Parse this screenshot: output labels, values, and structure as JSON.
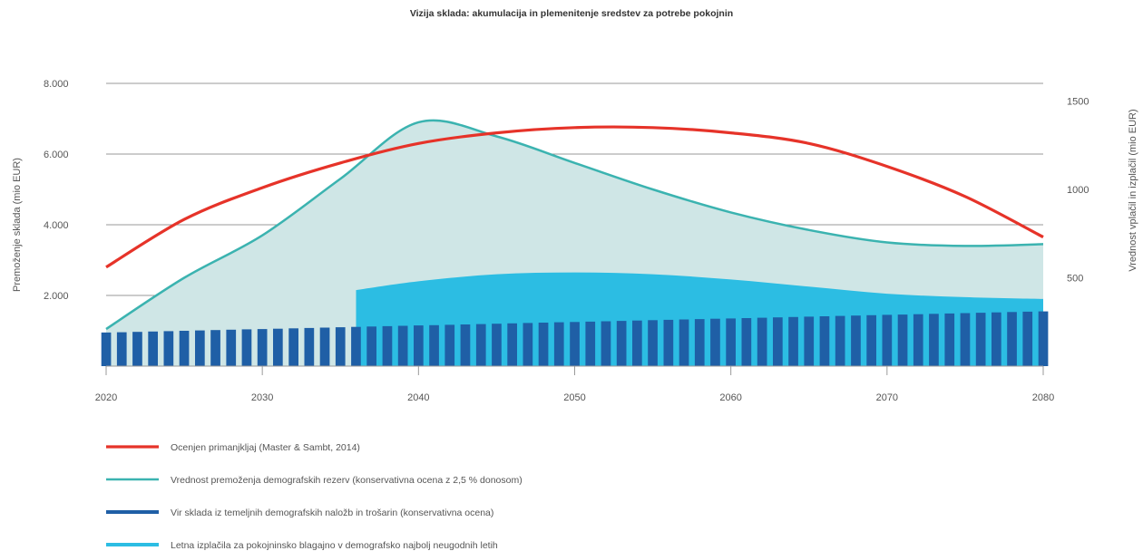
{
  "chart_data": {
    "type": "area",
    "title": "Vizija sklada: akumulacija in plemenitenje sredstev za potrebe pokojnin",
    "ylabel_left": "Premoženje sklada (mio EUR)",
    "ylabel_right": "Vrednost vplačil in izplačil (mio EUR)",
    "x_ticks": [
      "2020",
      "2030",
      "2040",
      "2050",
      "2060",
      "2070",
      "2080"
    ],
    "y_left_ticks": [
      "8.000",
      "6.000",
      "4.000",
      "2.000"
    ],
    "y_right_ticks": [
      "1500",
      "1000",
      "500"
    ],
    "xlim": [
      2020,
      2080
    ],
    "ylim_left": [
      0,
      8000
    ],
    "ylim_right": [
      0,
      1600
    ],
    "grid": true,
    "legend_position": "bottom-left",
    "colors": {
      "deficit": "#e63329",
      "reserves_line": "#3bb3b0",
      "reserves_fill": "#cfe6e6",
      "source": "#1f5fa6",
      "payouts": "#2cbde3"
    },
    "series": [
      {
        "name": "Ocenjen primanjkljaj (Master & Sambt, 2014)",
        "axis": "right",
        "kind": "line",
        "x": [
          2020,
          2025,
          2030,
          2035,
          2040,
          2045,
          2050,
          2055,
          2060,
          2065,
          2070,
          2075,
          2080
        ],
        "values": [
          560,
          830,
          1010,
          1150,
          1260,
          1320,
          1350,
          1350,
          1320,
          1260,
          1130,
          960,
          730
        ]
      },
      {
        "name": "Vrednost premoženja demografskih rezerv (konservativna ocena z 2,5 % donosom)",
        "axis": "left",
        "kind": "area",
        "x": [
          2020,
          2025,
          2030,
          2035,
          2040,
          2045,
          2050,
          2055,
          2060,
          2065,
          2070,
          2075,
          2080
        ],
        "values": [
          1050,
          2500,
          3700,
          5300,
          6900,
          6500,
          5750,
          5000,
          4350,
          3850,
          3500,
          3400,
          3450
        ]
      },
      {
        "name": "Vir sklada iz temeljnih demografskih naložb in trošarin (konservativna ocena)",
        "axis": "left",
        "kind": "bar",
        "x": [
          2020,
          2021,
          2022,
          2023,
          2024,
          2025,
          2026,
          2027,
          2028,
          2029,
          2030,
          2031,
          2032,
          2033,
          2034,
          2035,
          2036,
          2037,
          2038,
          2039,
          2040,
          2041,
          2042,
          2043,
          2044,
          2045,
          2046,
          2047,
          2048,
          2049,
          2050,
          2051,
          2052,
          2053,
          2054,
          2055,
          2056,
          2057,
          2058,
          2059,
          2060,
          2061,
          2062,
          2063,
          2064,
          2065,
          2066,
          2067,
          2068,
          2069,
          2070,
          2071,
          2072,
          2073,
          2074,
          2075,
          2076,
          2077,
          2078,
          2079,
          2080
        ],
        "values": [
          950,
          960,
          970,
          980,
          990,
          1000,
          1010,
          1020,
          1030,
          1040,
          1050,
          1060,
          1070,
          1080,
          1090,
          1100,
          1110,
          1120,
          1130,
          1140,
          1150,
          1160,
          1170,
          1180,
          1190,
          1200,
          1210,
          1220,
          1230,
          1240,
          1250,
          1260,
          1270,
          1280,
          1290,
          1300,
          1310,
          1320,
          1330,
          1340,
          1350,
          1360,
          1370,
          1380,
          1390,
          1400,
          1410,
          1420,
          1430,
          1440,
          1450,
          1460,
          1470,
          1480,
          1490,
          1500,
          1510,
          1520,
          1530,
          1540,
          1550
        ]
      },
      {
        "name": "Letna izplačila za pokojninsko blagajno v demografsko najbolj neugodnih letih",
        "axis": "left",
        "kind": "area",
        "x": [
          2036,
          2040,
          2045,
          2050,
          2055,
          2060,
          2065,
          2070,
          2075,
          2080
        ],
        "values": [
          2150,
          2400,
          2600,
          2650,
          2600,
          2450,
          2250,
          2050,
          1950,
          1900
        ]
      }
    ]
  }
}
